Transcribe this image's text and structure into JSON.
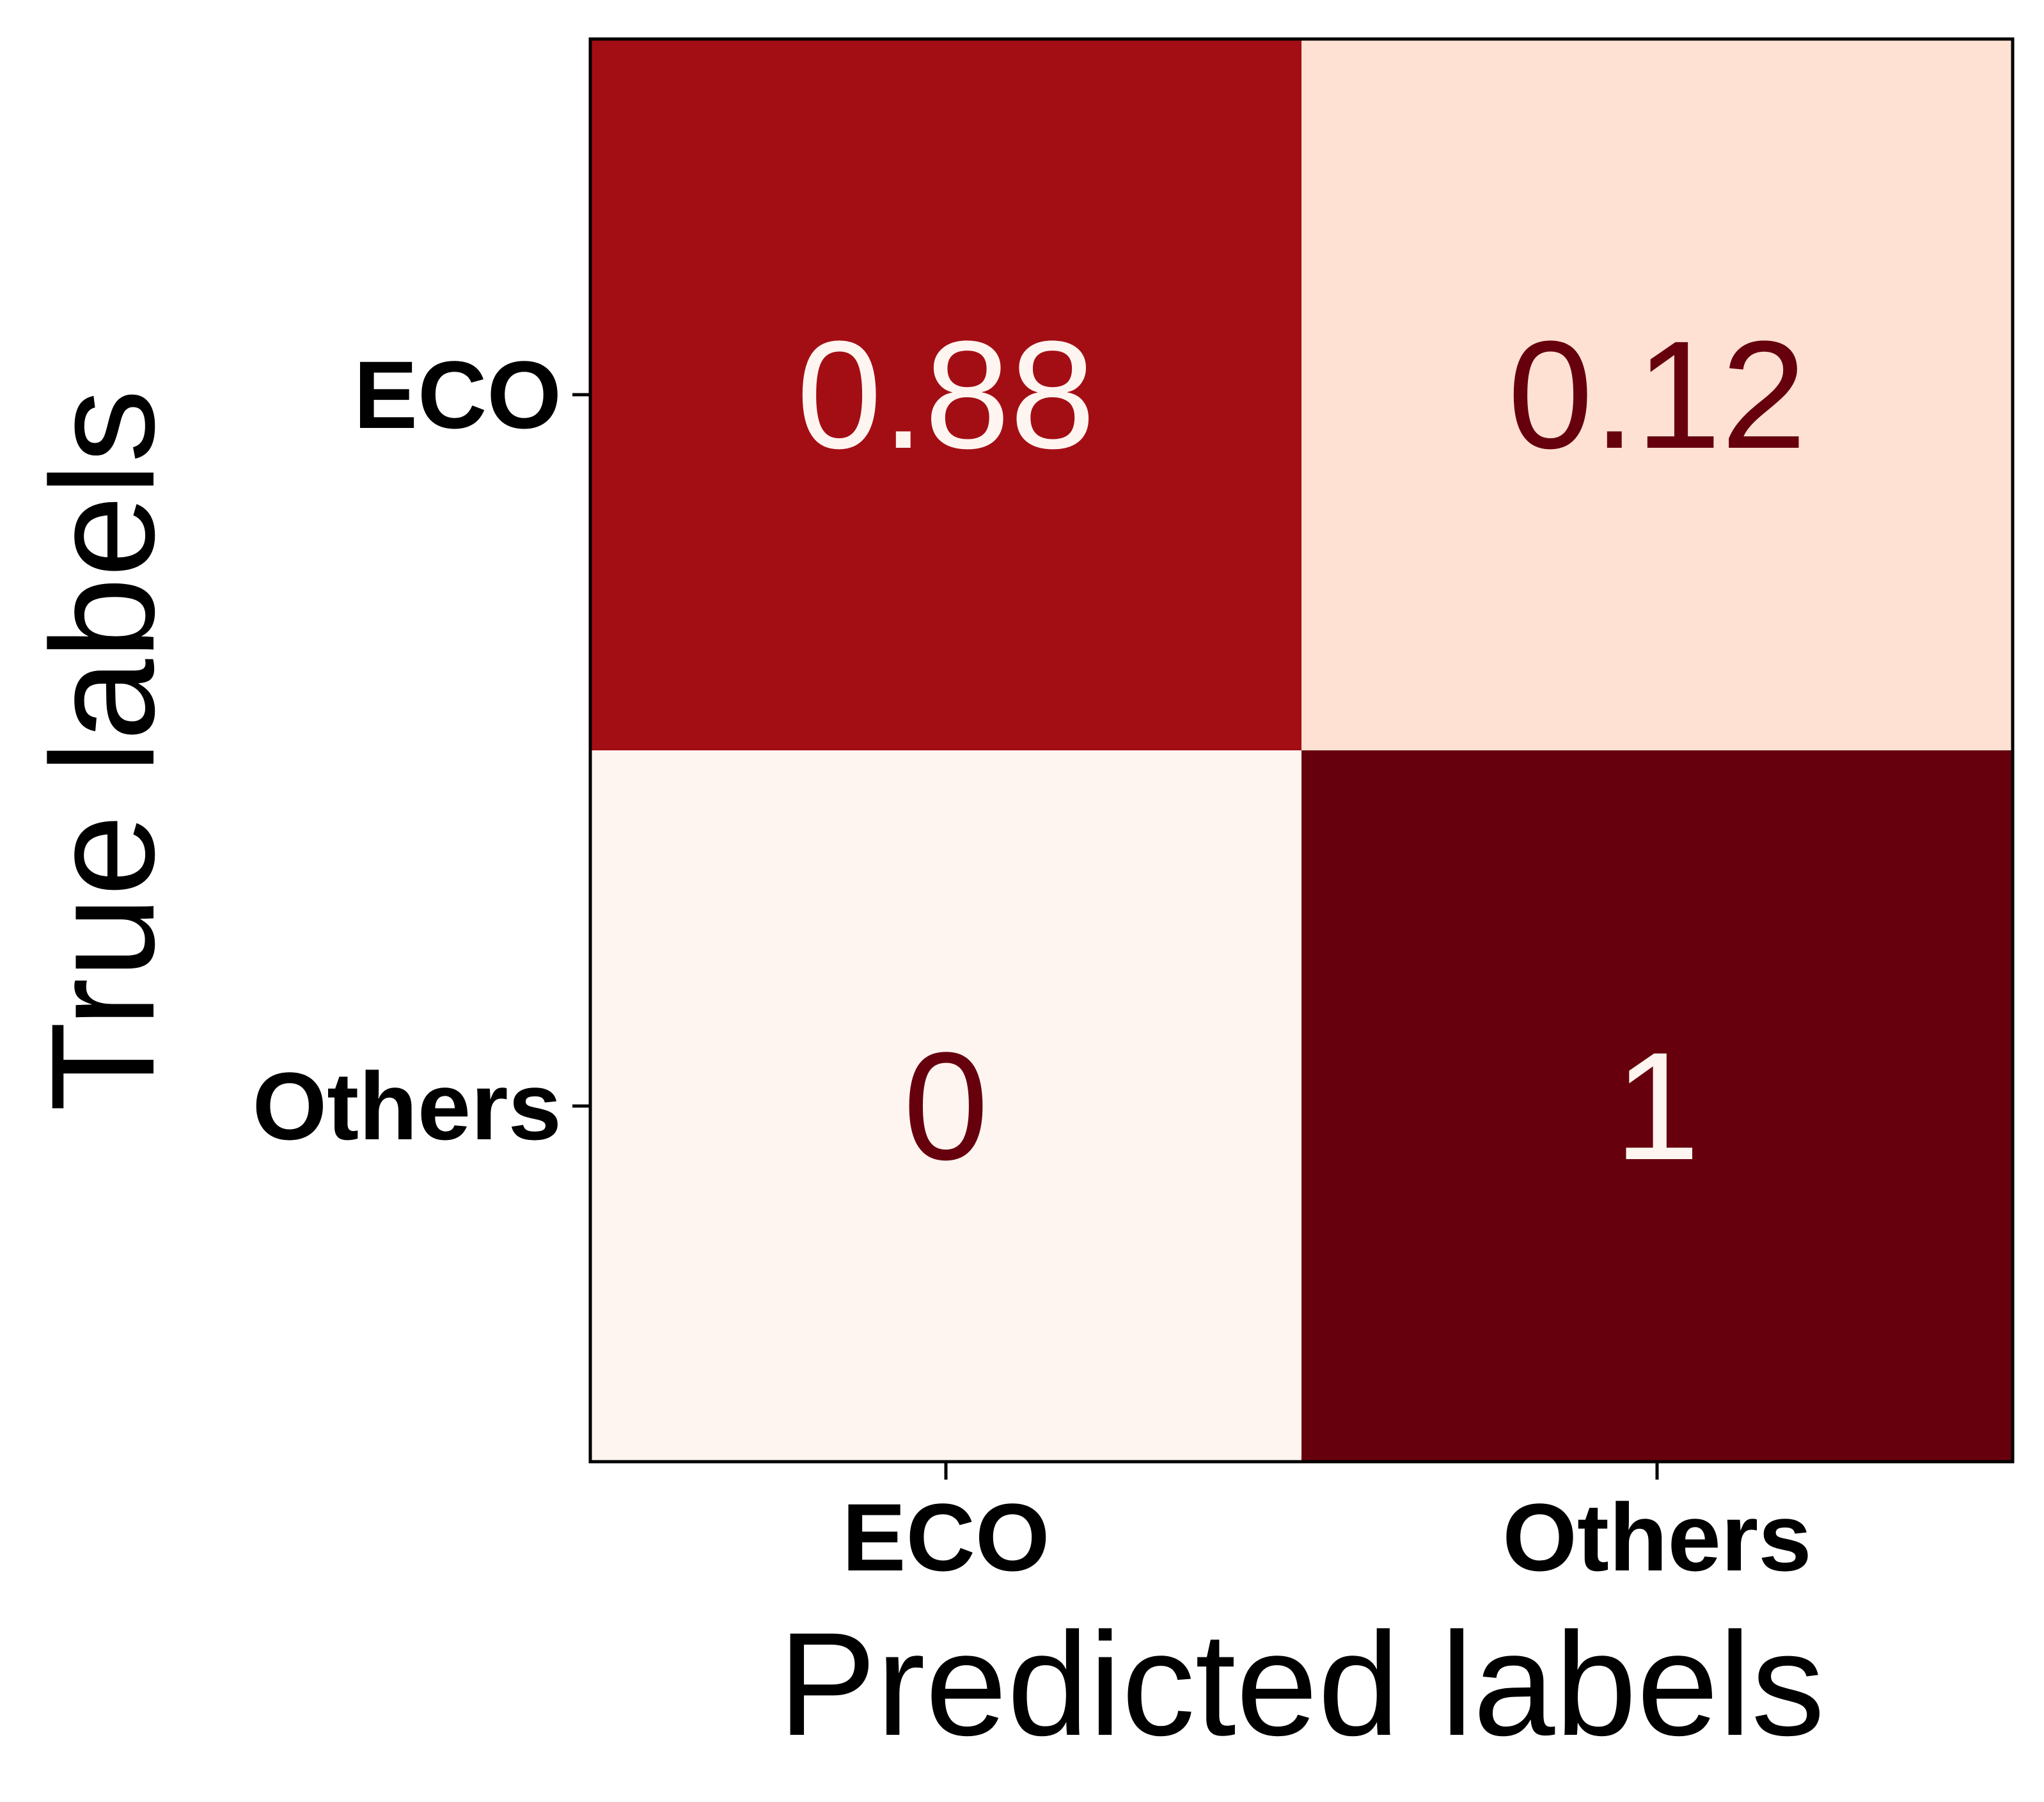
{
  "chart_data": {
    "type": "heatmap",
    "x_categories": [
      "ECO",
      "Others"
    ],
    "y_categories": [
      "ECO",
      "Others"
    ],
    "values": [
      [
        0.88,
        0.12
      ],
      [
        0,
        1
      ]
    ],
    "value_labels": [
      [
        "0.88",
        "0.12"
      ],
      [
        "0",
        "1"
      ]
    ],
    "xlabel": "Predicted labels",
    "ylabel": "True labels",
    "colormap": "Reds",
    "vmin": 0,
    "vmax": 1,
    "grid": false,
    "colors": {
      "cell_low": "#fff5f0",
      "cell_mid_low": "#fde0d2",
      "cell_high": "#a00f15",
      "cell_max": "#67000d",
      "text_on_dark": "#fff5f0",
      "text_on_light": "#67000d",
      "axis": "#000000"
    }
  }
}
